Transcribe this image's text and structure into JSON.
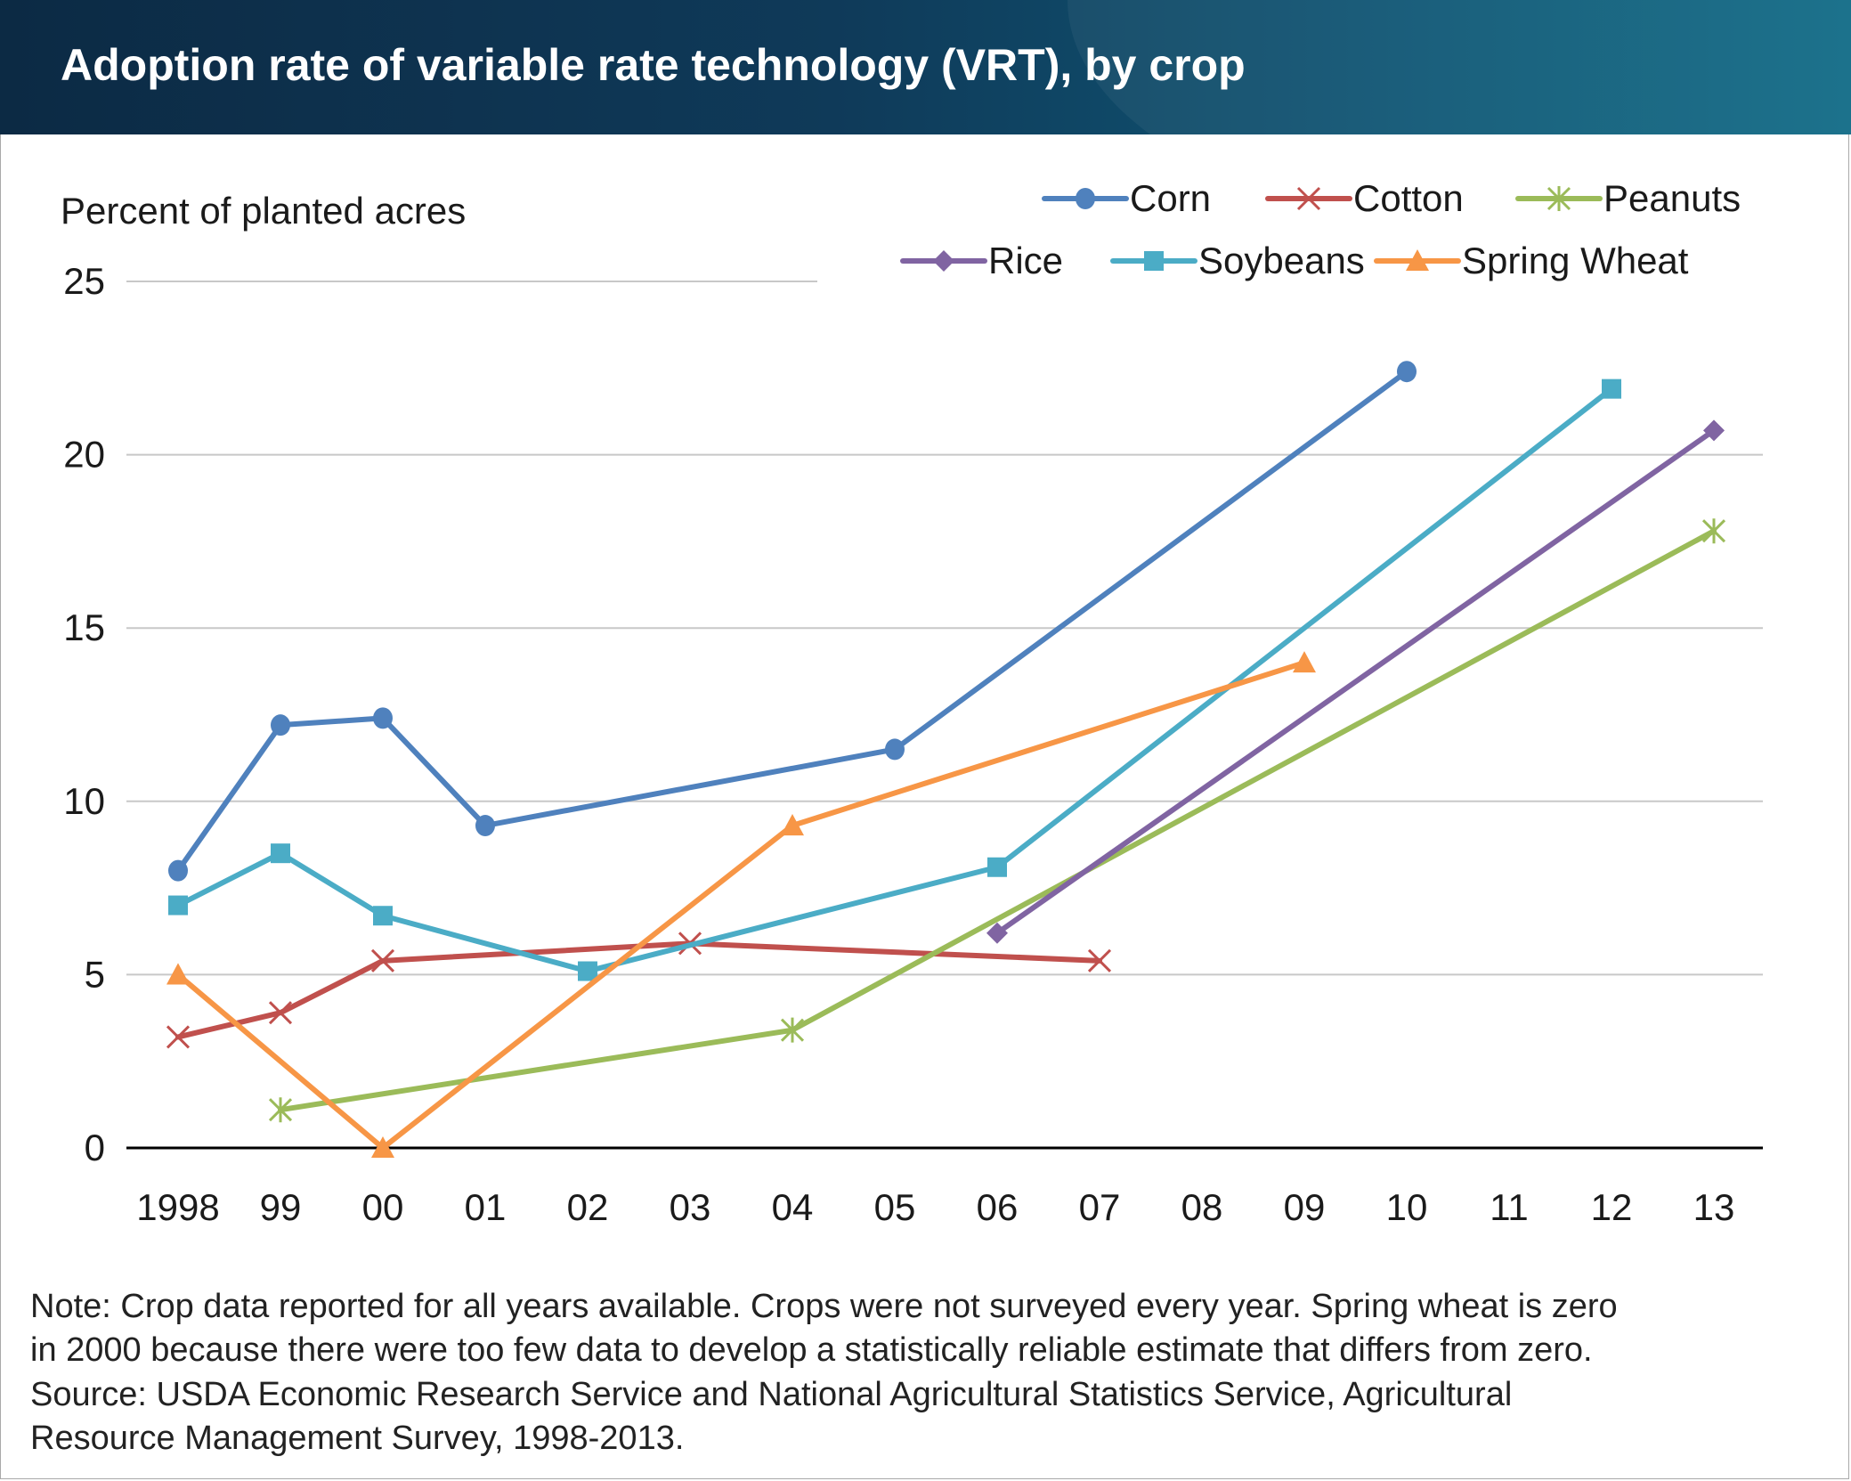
{
  "title": "Adoption rate of variable rate technology (VRT), by crop",
  "note": {
    "lines": [
      "Note: Crop data reported for all years available. Crops were not surveyed every year. Spring wheat is zero",
      "in 2000 because there were too few data to develop a statistically reliable estimate that differs from zero.",
      "Source: USDA Economic Research Service and National Agricultural Statistics Service, Agricultural",
      "Resource Management Survey, 1998-2013."
    ]
  },
  "chart_data": {
    "type": "line",
    "title": "Adoption rate of variable rate technology (VRT), by crop",
    "ylabel": "Percent of planted acres",
    "xlabel": "",
    "ylim": [
      0,
      25
    ],
    "yticks": [
      0,
      5,
      10,
      15,
      20,
      25
    ],
    "categories": [
      "1998",
      "99",
      "00",
      "01",
      "02",
      "03",
      "04",
      "05",
      "06",
      "07",
      "08",
      "09",
      "10",
      "11",
      "12",
      "13"
    ],
    "legend": {
      "placement": "top-right"
    },
    "grid": true,
    "series": [
      {
        "name": "Corn",
        "color": "#4f81bd",
        "marker": "circle",
        "values": [
          8.0,
          12.2,
          12.4,
          9.3,
          null,
          null,
          null,
          11.5,
          null,
          null,
          null,
          null,
          22.4,
          null,
          null,
          null
        ]
      },
      {
        "name": "Cotton",
        "color": "#c0504d",
        "marker": "x",
        "values": [
          3.2,
          3.9,
          5.4,
          null,
          null,
          5.9,
          null,
          null,
          null,
          5.4,
          null,
          null,
          null,
          null,
          null,
          null
        ]
      },
      {
        "name": "Peanuts",
        "color": "#9bbb59",
        "marker": "star",
        "values": [
          null,
          1.1,
          null,
          null,
          null,
          null,
          3.4,
          null,
          null,
          null,
          null,
          null,
          null,
          null,
          null,
          17.8
        ]
      },
      {
        "name": "Rice",
        "color": "#8064a2",
        "marker": "diamond",
        "values": [
          null,
          null,
          null,
          null,
          null,
          null,
          null,
          null,
          6.2,
          null,
          null,
          null,
          null,
          null,
          null,
          20.7
        ]
      },
      {
        "name": "Soybeans",
        "color": "#4bacc6",
        "marker": "square",
        "values": [
          7.0,
          8.5,
          6.7,
          null,
          5.1,
          null,
          null,
          null,
          8.1,
          null,
          null,
          null,
          null,
          null,
          21.9,
          null
        ]
      },
      {
        "name": "Spring Wheat",
        "color": "#f79646",
        "marker": "triangle",
        "values": [
          5.0,
          null,
          0.0,
          null,
          null,
          null,
          9.3,
          null,
          null,
          null,
          null,
          14.0,
          null,
          null,
          null,
          null
        ]
      }
    ]
  }
}
